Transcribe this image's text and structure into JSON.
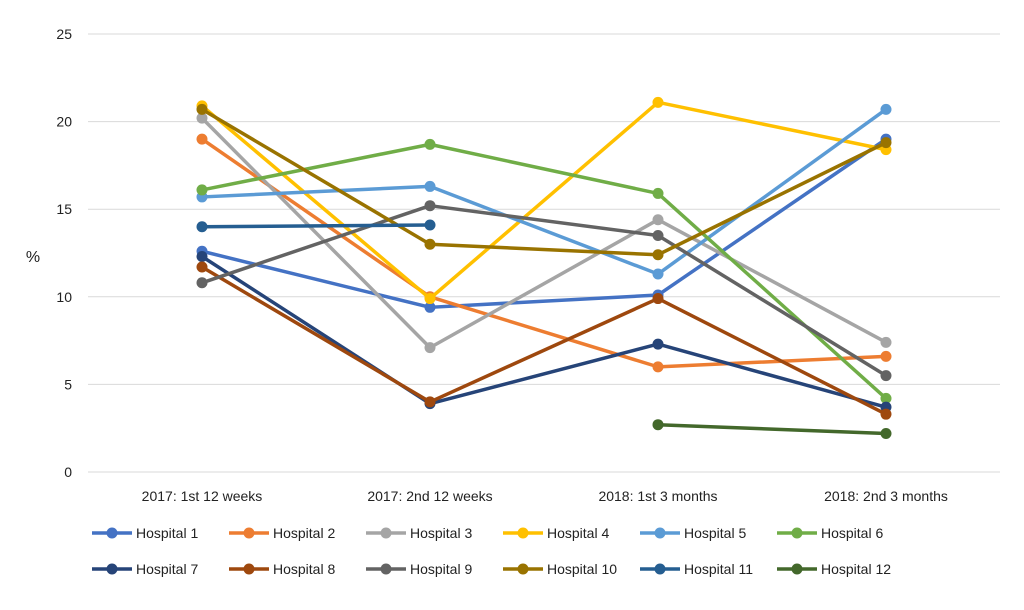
{
  "chart_data": {
    "type": "line",
    "title": "",
    "xlabel": "",
    "ylabel": "%",
    "ylim": [
      0,
      25
    ],
    "yticks": [
      0,
      5,
      10,
      15,
      20,
      25
    ],
    "grid": true,
    "legend_position": "bottom",
    "categories": [
      "2017: 1st 12 weeks",
      "2017: 2nd 12 weeks",
      "2018: 1st 3 months",
      "2018: 2nd 3 months"
    ],
    "series": [
      {
        "name": "Hospital 1",
        "color": "#4472C4",
        "values": [
          12.6,
          9.4,
          10.1,
          19.0
        ]
      },
      {
        "name": "Hospital 2",
        "color": "#ED7D31",
        "values": [
          19.0,
          10.0,
          6.0,
          6.6
        ]
      },
      {
        "name": "Hospital 3",
        "color": "#A5A5A5",
        "values": [
          20.2,
          7.1,
          14.4,
          7.4
        ]
      },
      {
        "name": "Hospital 4",
        "color": "#FFC000",
        "values": [
          20.9,
          9.9,
          21.1,
          18.4
        ]
      },
      {
        "name": "Hospital 5",
        "color": "#5B9BD5",
        "values": [
          15.7,
          16.3,
          11.3,
          20.7
        ]
      },
      {
        "name": "Hospital 6",
        "color": "#70AD47",
        "values": [
          16.1,
          18.7,
          15.9,
          4.2
        ]
      },
      {
        "name": "Hospital 7",
        "color": "#264478",
        "values": [
          12.3,
          3.9,
          7.3,
          3.7
        ]
      },
      {
        "name": "Hospital 8",
        "color": "#9E480E",
        "values": [
          11.7,
          4.0,
          9.9,
          3.3
        ]
      },
      {
        "name": "Hospital 9",
        "color": "#636363",
        "values": [
          10.8,
          15.2,
          13.5,
          5.5
        ]
      },
      {
        "name": "Hospital 10",
        "color": "#997300",
        "values": [
          20.7,
          13.0,
          12.4,
          18.8
        ]
      },
      {
        "name": "Hospital 11",
        "color": "#255E91",
        "values": [
          14.0,
          14.1,
          null,
          null
        ]
      },
      {
        "name": "Hospital 12",
        "color": "#43682B",
        "values": [
          null,
          null,
          2.7,
          2.2
        ]
      }
    ]
  }
}
